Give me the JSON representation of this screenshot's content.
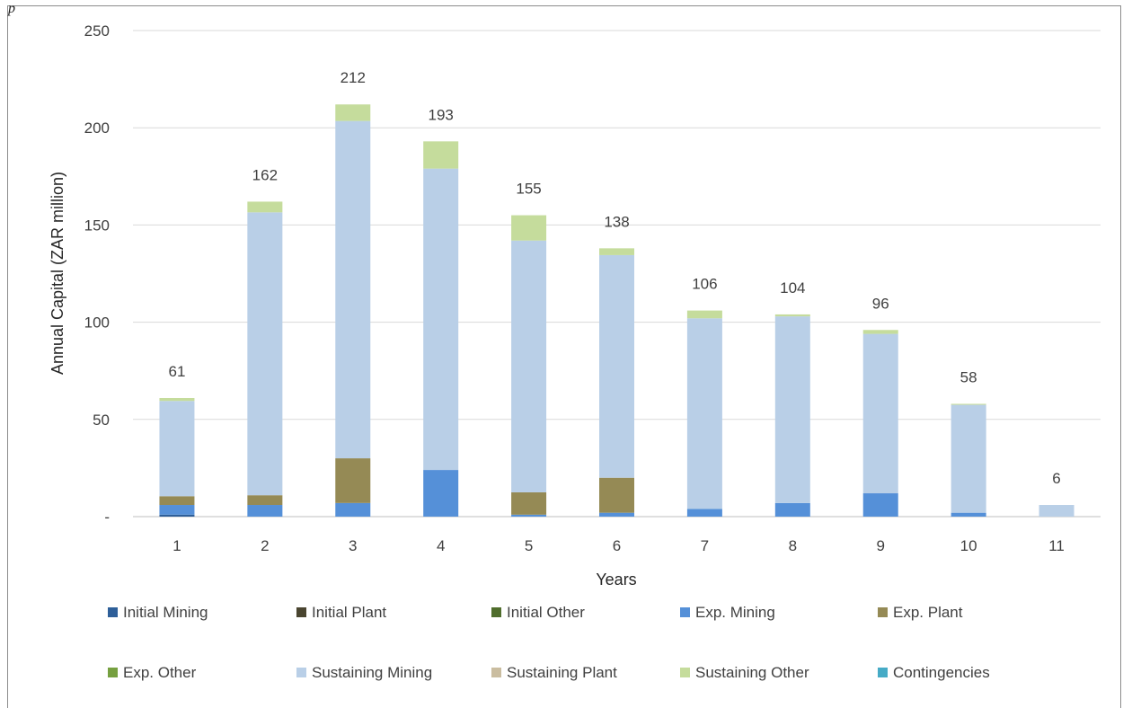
{
  "corner_mark": "p",
  "chart_data": {
    "type": "bar",
    "stacked": true,
    "title": "",
    "xlabel": "Years",
    "ylabel": "Annual Capital (ZAR million)",
    "ylim": [
      0,
      250
    ],
    "yticks": [
      0,
      50,
      100,
      150,
      200,
      250
    ],
    "ytick_labels": [
      "-",
      "50",
      "100",
      "150",
      "200",
      "250"
    ],
    "grid": true,
    "legend_position": "bottom",
    "categories": [
      "1",
      "2",
      "3",
      "4",
      "5",
      "6",
      "7",
      "8",
      "9",
      "10",
      "11"
    ],
    "totals": [
      61,
      162,
      212,
      193,
      155,
      138,
      106,
      104,
      96,
      58,
      6
    ],
    "series": [
      {
        "name": "Initial Mining",
        "color": "#2e5f99",
        "values": [
          1,
          0,
          0,
          0,
          0,
          0,
          0,
          0,
          0,
          0,
          0
        ]
      },
      {
        "name": "Initial Plant",
        "color": "#4a4530",
        "values": [
          0,
          0,
          0,
          0,
          0,
          0,
          0,
          0,
          0,
          0,
          0
        ]
      },
      {
        "name": "Initial Other",
        "color": "#4f6d2c",
        "values": [
          0,
          0,
          0,
          0,
          0,
          0,
          0,
          0,
          0,
          0,
          0
        ]
      },
      {
        "name": "Exp. Mining",
        "color": "#5590d8",
        "values": [
          5,
          6,
          7,
          24,
          1,
          2,
          4,
          7,
          12,
          2,
          0
        ]
      },
      {
        "name": "Exp. Plant",
        "color": "#958a55",
        "values": [
          4.5,
          5,
          23,
          0,
          11.5,
          18,
          0,
          0,
          0,
          0,
          0
        ]
      },
      {
        "name": "Exp. Other",
        "color": "#76a040",
        "values": [
          0,
          0,
          0,
          0,
          0,
          0,
          0,
          0,
          0,
          0,
          0
        ]
      },
      {
        "name": "Sustaining Mining",
        "color": "#b9cfe7",
        "values": [
          49,
          145.5,
          173.5,
          155,
          129.5,
          114.5,
          98,
          96,
          82,
          55.5,
          6
        ]
      },
      {
        "name": "Sustaining Plant",
        "color": "#cabda0",
        "values": [
          0,
          0,
          0,
          0,
          0,
          0,
          0,
          0,
          0,
          0,
          0
        ]
      },
      {
        "name": "Sustaining Other",
        "color": "#c5dc9c",
        "values": [
          1.5,
          5.5,
          8.5,
          14,
          13,
          3.5,
          4,
          1,
          2,
          0.5,
          0
        ]
      },
      {
        "name": "Contingencies",
        "color": "#46abc6",
        "values": [
          0,
          0,
          0,
          0,
          0,
          0,
          0,
          0,
          0,
          0,
          0
        ]
      }
    ]
  }
}
